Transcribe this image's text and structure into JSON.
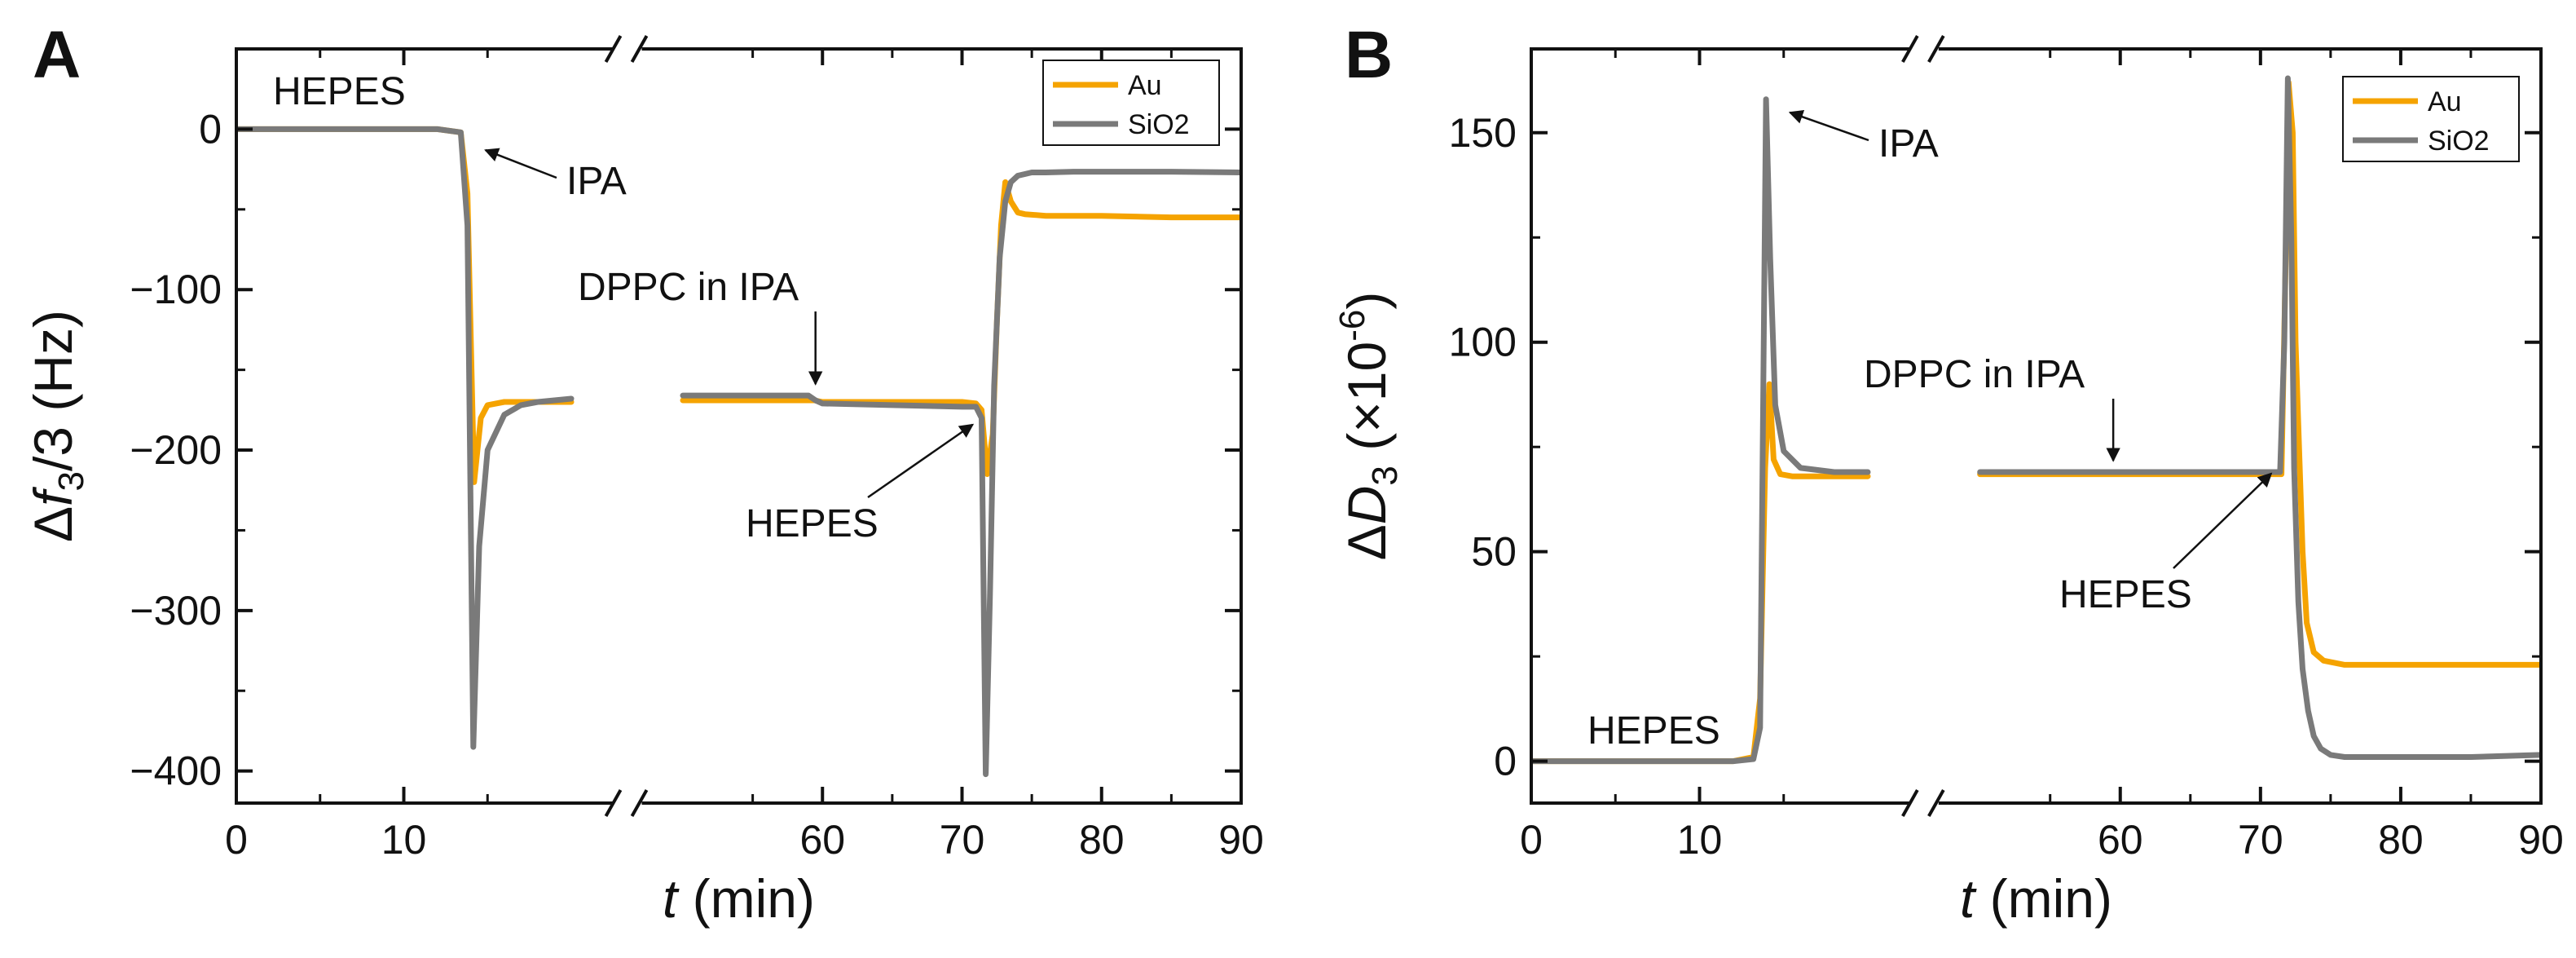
{
  "chart_data": [
    {
      "type": "line",
      "panel": "A",
      "ylabel_parts": {
        "delta": "Δ",
        "var": "f",
        "sub": "3",
        "rest": "/3 (Hz)"
      },
      "xlabel_parts": {
        "var": "t",
        "rest": " (min)"
      },
      "ylim": [
        -420,
        50
      ],
      "yticks": [
        0,
        -100,
        -200,
        -300,
        -400
      ],
      "ytick_labels": [
        "0",
        "−100",
        "−200",
        "−300",
        "−400"
      ],
      "xticks": [
        0,
        10,
        60,
        70,
        80,
        90
      ],
      "xtick_labels": [
        "0",
        "10",
        "60",
        "70",
        "80",
        "90"
      ],
      "axis_break": {
        "display_position": 35,
        "before_max": 20,
        "after_min": 50
      },
      "legend": [
        "Au",
        "SiO2"
      ],
      "annotations": [
        {
          "text": "HEPES",
          "arrow": false
        },
        {
          "text": "IPA",
          "arrow": true,
          "target": [
            14,
            -10
          ]
        },
        {
          "text": "DPPC in IPA",
          "arrow": true,
          "target": [
            59.5,
            -166
          ]
        },
        {
          "text": "HEPES",
          "arrow": true,
          "target": [
            71,
            -178
          ]
        }
      ],
      "series": [
        {
          "name": "Au",
          "color": "#f5a300",
          "x": [
            0,
            12,
            13.4,
            13.8,
            14.2,
            14.6,
            15.0,
            16,
            18,
            20,
            50,
            59.4,
            60,
            65,
            70,
            71.0,
            71.4,
            71.8,
            72.2,
            72.5,
            72.8,
            73.1,
            73.5,
            74,
            74.5,
            76,
            80,
            85,
            90
          ],
          "y": [
            0,
            0,
            -2,
            -40,
            -220,
            -180,
            -172,
            -170,
            -170,
            -170,
            -169,
            -169,
            -170,
            -170,
            -170,
            -171,
            -175,
            -215,
            -190,
            -120,
            -60,
            -33,
            -45,
            -52,
            -53,
            -54,
            -54,
            -55,
            -55
          ]
        },
        {
          "name": "SiO2",
          "color": "#7a7a7a",
          "x": [
            0,
            12,
            13.4,
            13.8,
            14.15,
            14.5,
            15.0,
            16,
            17,
            18,
            20,
            50,
            59.0,
            59.5,
            60,
            65,
            70,
            71.0,
            71.4,
            71.7,
            72.0,
            72.3,
            72.7,
            73.1,
            73.5,
            74,
            75,
            76,
            78,
            80,
            85,
            90
          ],
          "y": [
            0,
            0,
            -2,
            -60,
            -385,
            -260,
            -200,
            -178,
            -172,
            -170,
            -168,
            -166,
            -166,
            -169,
            -171,
            -172,
            -173,
            -173,
            -180,
            -402,
            -290,
            -160,
            -80,
            -45,
            -33,
            -29,
            -27,
            -27,
            -26.5,
            -26.5,
            -26.5,
            -27
          ]
        }
      ]
    },
    {
      "type": "line",
      "panel": "B",
      "ylabel_parts": {
        "delta": "Δ",
        "var": "D",
        "sub": "3",
        "rest": " (×10",
        "sup": "-6",
        "close": ")"
      },
      "xlabel_parts": {
        "var": "t",
        "rest": " (min)"
      },
      "ylim": [
        -10,
        170
      ],
      "yticks": [
        0,
        50,
        100,
        150
      ],
      "ytick_labels": [
        "0",
        "50",
        "100",
        "150"
      ],
      "xticks": [
        0,
        10,
        60,
        70,
        80,
        90
      ],
      "xtick_labels": [
        "0",
        "10",
        "60",
        "70",
        "80",
        "90"
      ],
      "axis_break": {
        "display_position": 35,
        "before_max": 20,
        "after_min": 50
      },
      "legend": [
        "Au",
        "SiO2"
      ],
      "annotations": [
        {
          "text": "HEPES",
          "arrow": false
        },
        {
          "text": "IPA",
          "arrow": true,
          "target": [
            14.5,
            156
          ]
        },
        {
          "text": "DPPC in IPA",
          "arrow": true,
          "target": [
            59.5,
            69
          ]
        },
        {
          "text": "HEPES",
          "arrow": true,
          "target": [
            71,
            71
          ]
        }
      ],
      "series": [
        {
          "name": "Au",
          "color": "#f5a300",
          "x": [
            0,
            12,
            13.2,
            13.6,
            13.9,
            14.15,
            14.4,
            14.8,
            15.5,
            17,
            20,
            50,
            60,
            70,
            71.5,
            71.8,
            72.0,
            72.3,
            72.5,
            72.7,
            73.0,
            73.3,
            73.8,
            74.5,
            76,
            80,
            85,
            90
          ],
          "y": [
            0,
            0,
            1,
            15,
            70,
            90,
            72,
            68.5,
            68,
            68,
            68,
            68.5,
            68.5,
            68.5,
            68.5,
            120,
            162,
            150,
            100,
            80,
            50,
            33,
            26,
            24,
            23,
            23,
            23,
            23
          ]
        },
        {
          "name": "SiO2",
          "color": "#7a7a7a",
          "x": [
            0,
            12,
            13.2,
            13.6,
            13.95,
            14.2,
            14.5,
            15.0,
            16,
            18,
            20,
            50,
            60,
            70,
            71.4,
            71.7,
            71.95,
            72.2,
            72.4,
            72.7,
            73.0,
            73.4,
            73.8,
            74.3,
            75,
            76,
            80,
            85,
            90
          ],
          "y": [
            0,
            0,
            0.5,
            8,
            158,
            120,
            85,
            74,
            70,
            69,
            69,
            69,
            69,
            69,
            69,
            100,
            163,
            125,
            70,
            38,
            22,
            12,
            6,
            3,
            1.5,
            1,
            1,
            1,
            1.5
          ]
        }
      ]
    }
  ]
}
